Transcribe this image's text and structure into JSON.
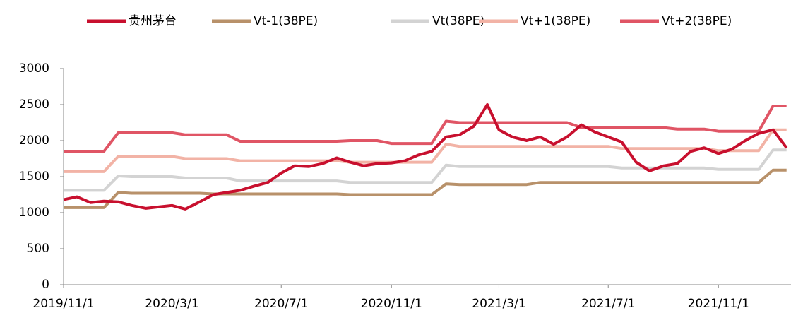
{
  "chart_data": {
    "type": "line",
    "x": [
      "2019/11/1",
      "2019/11/16",
      "2019/12/1",
      "2019/12/16",
      "2020/1/1",
      "2020/1/16",
      "2020/2/1",
      "2020/2/16",
      "2020/3/1",
      "2020/3/16",
      "2020/4/1",
      "2020/4/16",
      "2020/5/1",
      "2020/5/16",
      "2020/6/1",
      "2020/6/16",
      "2020/7/1",
      "2020/7/16",
      "2020/8/1",
      "2020/8/16",
      "2020/9/1",
      "2020/9/16",
      "2020/10/1",
      "2020/10/16",
      "2020/11/1",
      "2020/11/16",
      "2020/12/1",
      "2020/12/16",
      "2021/1/1",
      "2021/1/16",
      "2021/2/1",
      "2021/2/16",
      "2021/3/1",
      "2021/3/16",
      "2021/4/1",
      "2021/4/16",
      "2021/5/1",
      "2021/5/16",
      "2021/6/1",
      "2021/6/16",
      "2021/7/1",
      "2021/7/16",
      "2021/8/1",
      "2021/8/16",
      "2021/9/1",
      "2021/9/16",
      "2021/10/1",
      "2021/10/16",
      "2021/11/1",
      "2021/11/16",
      "2021/12/1",
      "2021/12/16",
      "2022/1/1",
      "2022/1/16"
    ],
    "series": [
      {
        "name": "贵州茅台",
        "color": "#c8102e",
        "values": [
          1180,
          1220,
          1140,
          1160,
          1150,
          1100,
          1060,
          1080,
          1100,
          1050,
          1150,
          1250,
          1280,
          1310,
          1370,
          1420,
          1550,
          1650,
          1640,
          1680,
          1760,
          1700,
          1650,
          1680,
          1690,
          1720,
          1800,
          1850,
          2050,
          2080,
          2200,
          2500,
          2150,
          2050,
          2000,
          2050,
          1950,
          2050,
          2220,
          2120,
          2050,
          1980,
          1700,
          1580,
          1650,
          1680,
          1850,
          1900,
          1820,
          1880,
          2000,
          2100,
          2150,
          1900
        ]
      },
      {
        "name": "Vt-1(38PE)",
        "color": "#b8916a",
        "values": [
          1070,
          1070,
          1070,
          1070,
          1280,
          1270,
          1270,
          1270,
          1270,
          1270,
          1270,
          1260,
          1260,
          1260,
          1260,
          1260,
          1260,
          1260,
          1260,
          1260,
          1260,
          1250,
          1250,
          1250,
          1250,
          1250,
          1250,
          1250,
          1400,
          1390,
          1390,
          1390,
          1390,
          1390,
          1390,
          1420,
          1420,
          1420,
          1420,
          1420,
          1420,
          1420,
          1420,
          1420,
          1420,
          1420,
          1420,
          1420,
          1420,
          1420,
          1420,
          1420,
          1590,
          1590
        ]
      },
      {
        "name": "Vt(38PE)",
        "color": "#d3d3d3",
        "values": [
          1310,
          1310,
          1310,
          1310,
          1510,
          1500,
          1500,
          1500,
          1500,
          1480,
          1480,
          1480,
          1480,
          1440,
          1440,
          1440,
          1440,
          1440,
          1440,
          1440,
          1440,
          1420,
          1420,
          1420,
          1420,
          1420,
          1420,
          1420,
          1660,
          1640,
          1640,
          1640,
          1640,
          1640,
          1640,
          1640,
          1640,
          1640,
          1640,
          1640,
          1640,
          1620,
          1620,
          1620,
          1620,
          1620,
          1620,
          1620,
          1600,
          1600,
          1600,
          1600,
          1870,
          1870
        ]
      },
      {
        "name": "Vt+1(38PE)",
        "color": "#f2b3a6",
        "values": [
          1570,
          1570,
          1570,
          1570,
          1780,
          1780,
          1780,
          1780,
          1780,
          1750,
          1750,
          1750,
          1750,
          1720,
          1720,
          1720,
          1720,
          1720,
          1720,
          1720,
          1720,
          1700,
          1700,
          1700,
          1700,
          1700,
          1700,
          1700,
          1950,
          1920,
          1920,
          1920,
          1920,
          1920,
          1920,
          1920,
          1920,
          1920,
          1920,
          1920,
          1920,
          1890,
          1890,
          1890,
          1890,
          1890,
          1890,
          1890,
          1860,
          1860,
          1860,
          1860,
          2150,
          2150
        ]
      },
      {
        "name": "Vt+2(38PE)",
        "color": "#e05565",
        "values": [
          1850,
          1850,
          1850,
          1850,
          2110,
          2110,
          2110,
          2110,
          2110,
          2080,
          2080,
          2080,
          2080,
          1990,
          1990,
          1990,
          1990,
          1990,
          1990,
          1990,
          1990,
          2000,
          2000,
          2000,
          1960,
          1960,
          1960,
          1960,
          2270,
          2250,
          2250,
          2250,
          2250,
          2250,
          2250,
          2250,
          2250,
          2250,
          2180,
          2180,
          2180,
          2180,
          2180,
          2180,
          2180,
          2160,
          2160,
          2160,
          2130,
          2130,
          2130,
          2130,
          2480,
          2480
        ]
      }
    ],
    "xlim": [
      "2019/11/1",
      "2022/1/21"
    ],
    "xticks": [
      "2019/11/1",
      "2020/3/1",
      "2020/7/1",
      "2020/11/1",
      "2021/3/1",
      "2021/7/1",
      "2021/11/1"
    ],
    "ylim": [
      0,
      3000
    ],
    "yticks": [
      0,
      500,
      1000,
      1500,
      2000,
      2500,
      3000
    ],
    "grid": false
  }
}
